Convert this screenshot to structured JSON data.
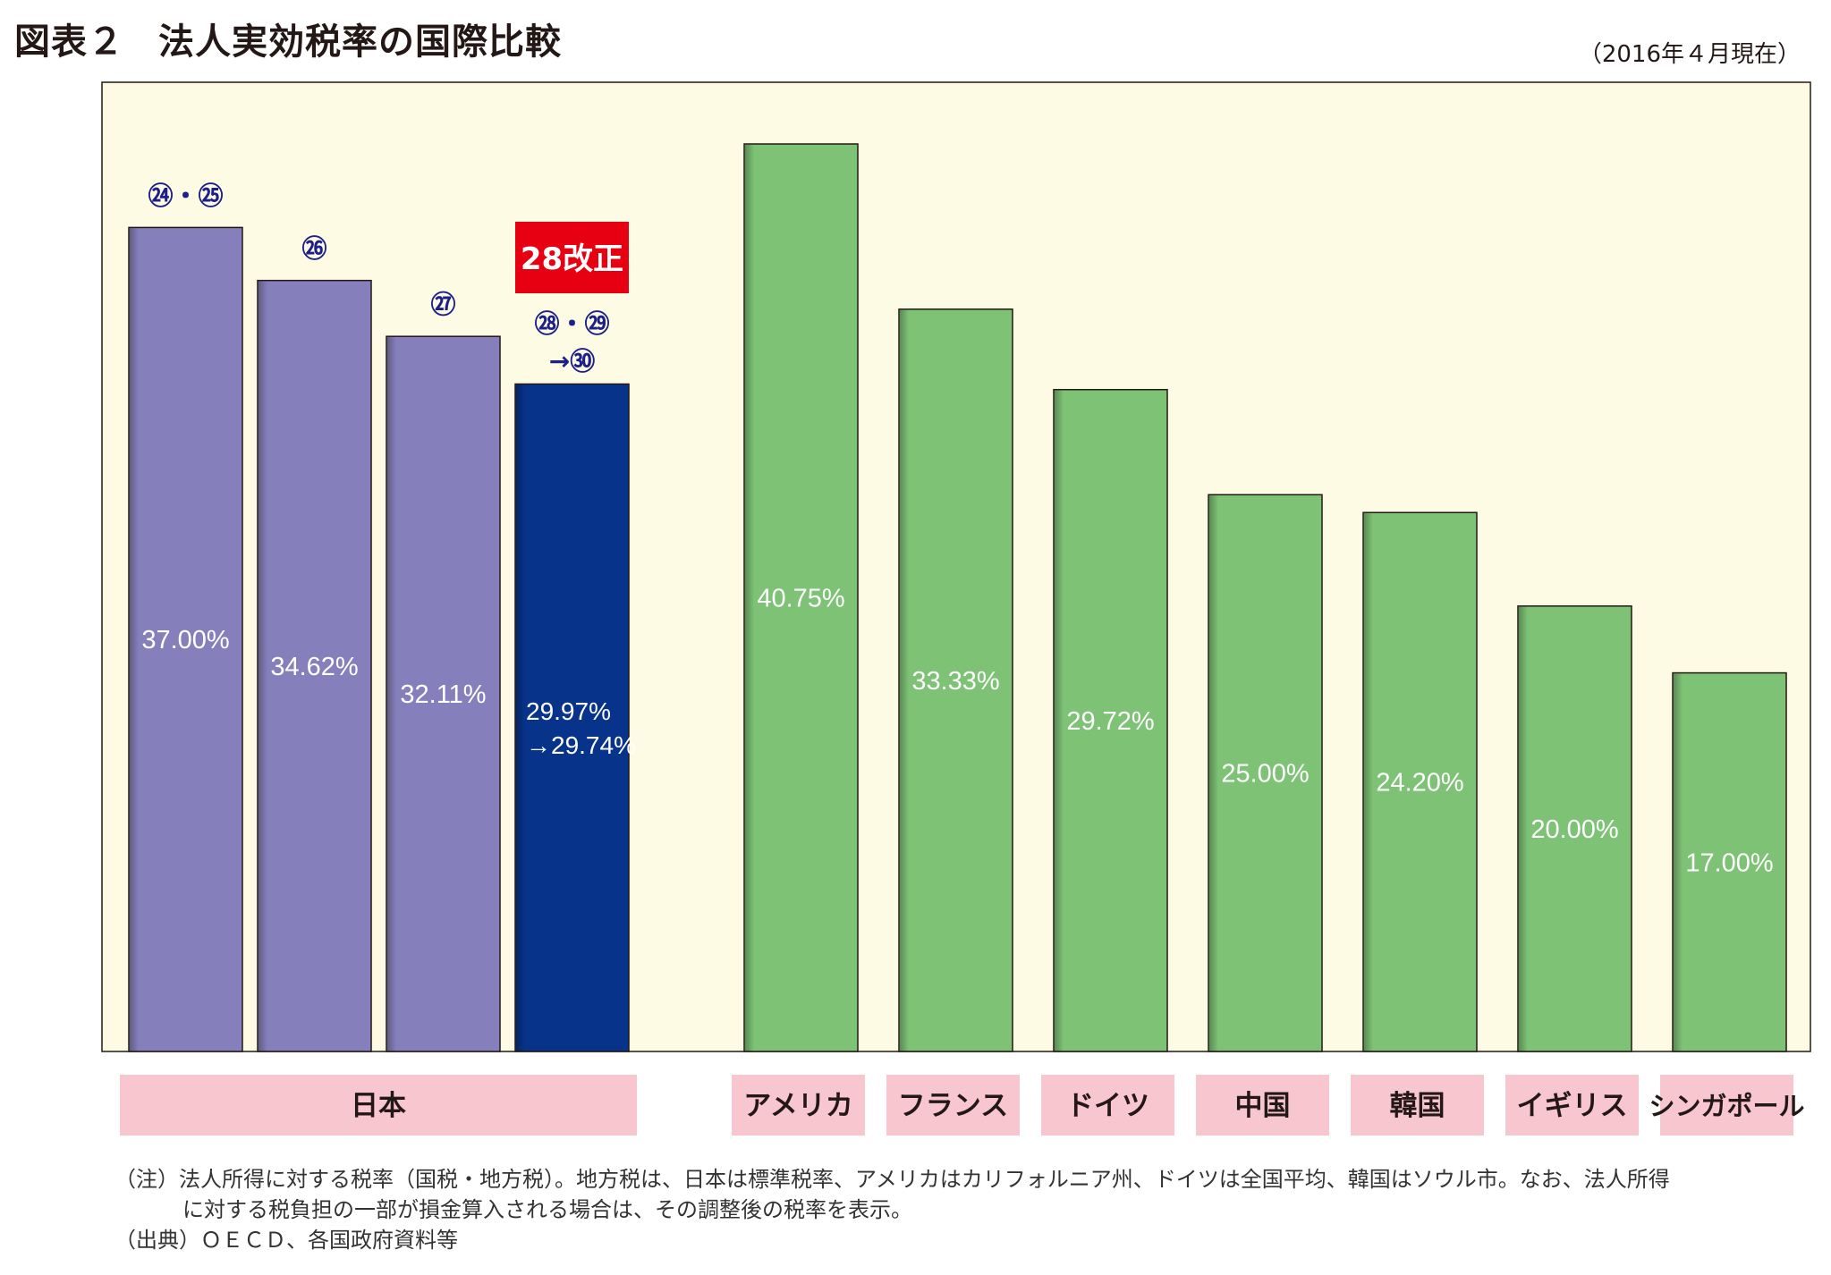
{
  "header": {
    "figure_number": "図表２",
    "title": "法人実効税率の国際比較",
    "as_of": "（2016年４月現在）"
  },
  "colors": {
    "plot_background": "#fefbe4",
    "japan_past_bar": "#8580bb",
    "japan_current_bar": "#07338a",
    "other_bar": "#7dc275",
    "category_box": "#f7c6cf",
    "badge": "#e60012",
    "annotation_text": "#1d2088"
  },
  "chart_data": {
    "type": "bar",
    "title": "法人実効税率の国際比較",
    "ylim": [
      0,
      45
    ],
    "grid": false,
    "legend": "none",
    "bars": [
      {
        "group": "日本",
        "value": 37.0,
        "label": "37.00%",
        "period": "㉔・㉕",
        "style": "japan_past"
      },
      {
        "group": "日本",
        "value": 34.62,
        "label": "34.62%",
        "period": "㉖",
        "style": "japan_past"
      },
      {
        "group": "日本",
        "value": 32.11,
        "label": "32.11%",
        "period": "㉗",
        "style": "japan_past"
      },
      {
        "group": "日本",
        "value": 29.97,
        "value_after": 29.74,
        "label": "29.97%",
        "label2": "→29.74%",
        "period": "㉘・㉙",
        "period2": "→㉚",
        "badge": "28改正",
        "style": "japan_current"
      },
      {
        "group": "アメリカ",
        "value": 40.75,
        "label": "40.75%",
        "style": "other"
      },
      {
        "group": "フランス",
        "value": 33.33,
        "label": "33.33%",
        "style": "other"
      },
      {
        "group": "ドイツ",
        "value": 29.72,
        "label": "29.72%",
        "style": "other"
      },
      {
        "group": "中国",
        "value": 25.0,
        "label": "25.00%",
        "style": "other"
      },
      {
        "group": "韓国",
        "value": 24.2,
        "label": "24.20%",
        "style": "other"
      },
      {
        "group": "イギリス",
        "value": 20.0,
        "label": "20.00%",
        "style": "other"
      },
      {
        "group": "シンガポール",
        "value": 17.0,
        "label": "17.00%",
        "style": "other"
      }
    ],
    "categories": [
      "日本",
      "アメリカ",
      "フランス",
      "ドイツ",
      "中国",
      "韓国",
      "イギリス",
      "シンガポール"
    ]
  },
  "notes": {
    "note_line1": "（注）法人所得に対する税率（国税・地方税）。地方税は、日本は標準税率、アメリカはカリフォルニア州、ドイツは全国平均、韓国はソウル市。なお、法人所得",
    "note_line2": "に対する税負担の一部が損金算入される場合は、その調整後の税率を表示。",
    "source": "（出典）ＯＥＣＤ、各国政府資料等"
  }
}
